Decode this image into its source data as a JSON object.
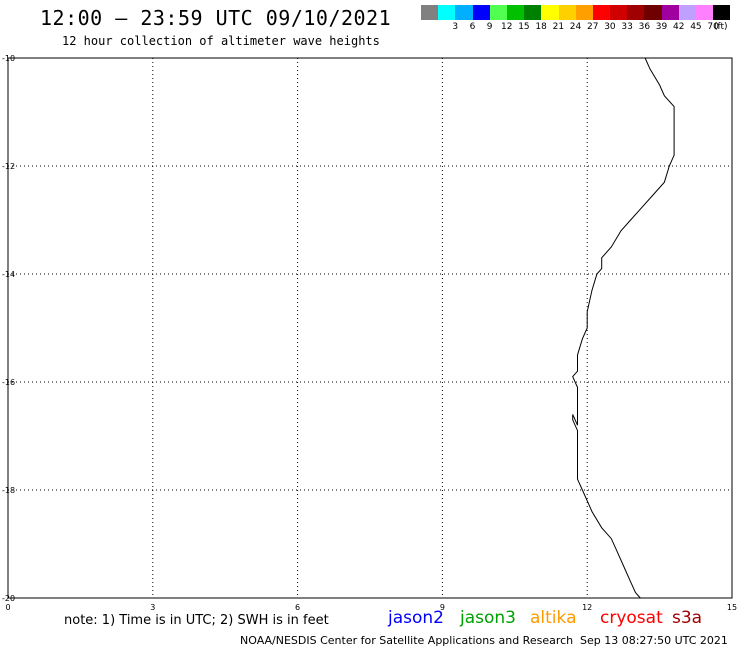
{
  "header": {
    "title": "12:00 – 23:59 UTC 09/10/2021",
    "subtitle": "12 hour collection of altimeter wave heights"
  },
  "legend": {
    "units": "(ft)",
    "entries": [
      {
        "label": "",
        "color": "#808080"
      },
      {
        "label": "3",
        "color": "#00ffff"
      },
      {
        "label": "6",
        "color": "#00b0ff"
      },
      {
        "label": "9",
        "color": "#0000ff"
      },
      {
        "label": "12",
        "color": "#50ff50"
      },
      {
        "label": "15",
        "color": "#00c000"
      },
      {
        "label": "18",
        "color": "#008000"
      },
      {
        "label": "21",
        "color": "#ffff00"
      },
      {
        "label": "24",
        "color": "#ffd000"
      },
      {
        "label": "27",
        "color": "#ffa000"
      },
      {
        "label": "30",
        "color": "#ff0000"
      },
      {
        "label": "33",
        "color": "#d00000"
      },
      {
        "label": "36",
        "color": "#a00000"
      },
      {
        "label": "39",
        "color": "#700000"
      },
      {
        "label": "42",
        "color": "#a000a0"
      },
      {
        "label": "45",
        "color": "#c0a0ff"
      },
      {
        "label": "70",
        "color": "#ff80ff"
      },
      {
        "label": "",
        "color": "#000000"
      }
    ]
  },
  "map": {
    "lat_ticks": [
      "-10",
      "-12",
      "-14",
      "-16",
      "-18",
      "-20"
    ],
    "lon_ticks": [
      "0",
      "3",
      "6",
      "9",
      "12",
      "15"
    ],
    "lat_range": [
      -20,
      -10
    ],
    "lon_range": [
      0,
      15
    ],
    "coastline": [
      [
        13.2,
        -10.0
      ],
      [
        13.3,
        -10.2
      ],
      [
        13.5,
        -10.5
      ],
      [
        13.6,
        -10.7
      ],
      [
        13.8,
        -10.9
      ],
      [
        13.8,
        -11.2
      ],
      [
        13.8,
        -11.5
      ],
      [
        13.8,
        -11.8
      ],
      [
        13.7,
        -12.0
      ],
      [
        13.6,
        -12.3
      ],
      [
        13.4,
        -12.5
      ],
      [
        13.1,
        -12.8
      ],
      [
        12.9,
        -13.0
      ],
      [
        12.7,
        -13.2
      ],
      [
        12.5,
        -13.5
      ],
      [
        12.3,
        -13.7
      ],
      [
        12.3,
        -13.9
      ],
      [
        12.2,
        -14.0
      ],
      [
        12.1,
        -14.3
      ],
      [
        12.0,
        -14.7
      ],
      [
        12.0,
        -15.0
      ],
      [
        11.9,
        -15.2
      ],
      [
        11.8,
        -15.5
      ],
      [
        11.8,
        -15.8
      ],
      [
        11.7,
        -15.9
      ],
      [
        11.8,
        -16.1
      ],
      [
        11.8,
        -16.4
      ],
      [
        11.8,
        -16.7
      ],
      [
        11.8,
        -16.8
      ],
      [
        11.7,
        -16.6
      ],
      [
        11.7,
        -16.7
      ],
      [
        11.8,
        -16.9
      ],
      [
        11.8,
        -17.3
      ],
      [
        11.8,
        -17.8
      ],
      [
        11.9,
        -18.0
      ],
      [
        12.0,
        -18.2
      ],
      [
        12.1,
        -18.4
      ],
      [
        12.3,
        -18.7
      ],
      [
        12.5,
        -18.9
      ],
      [
        12.6,
        -19.1
      ],
      [
        12.8,
        -19.5
      ],
      [
        12.9,
        -19.7
      ],
      [
        13.0,
        -19.9
      ],
      [
        13.1,
        -20.0
      ]
    ]
  },
  "footer": {
    "note": "note: 1) Time is in UTC; 2) SWH is in feet",
    "satellites": [
      {
        "name": "jason2",
        "color": "#0000ff"
      },
      {
        "name": "jason3",
        "color": "#00a000"
      },
      {
        "name": "altika",
        "color": "#ff9900"
      },
      {
        "name": "cryosat",
        "color": "#ff0000"
      },
      {
        "name": "s3a",
        "color": "#a00000"
      }
    ],
    "credit": "NOAA/NESDIS Center for Satellite Applications and Research",
    "timestamp": "Sep 13 08:27:50 UTC 2021"
  }
}
